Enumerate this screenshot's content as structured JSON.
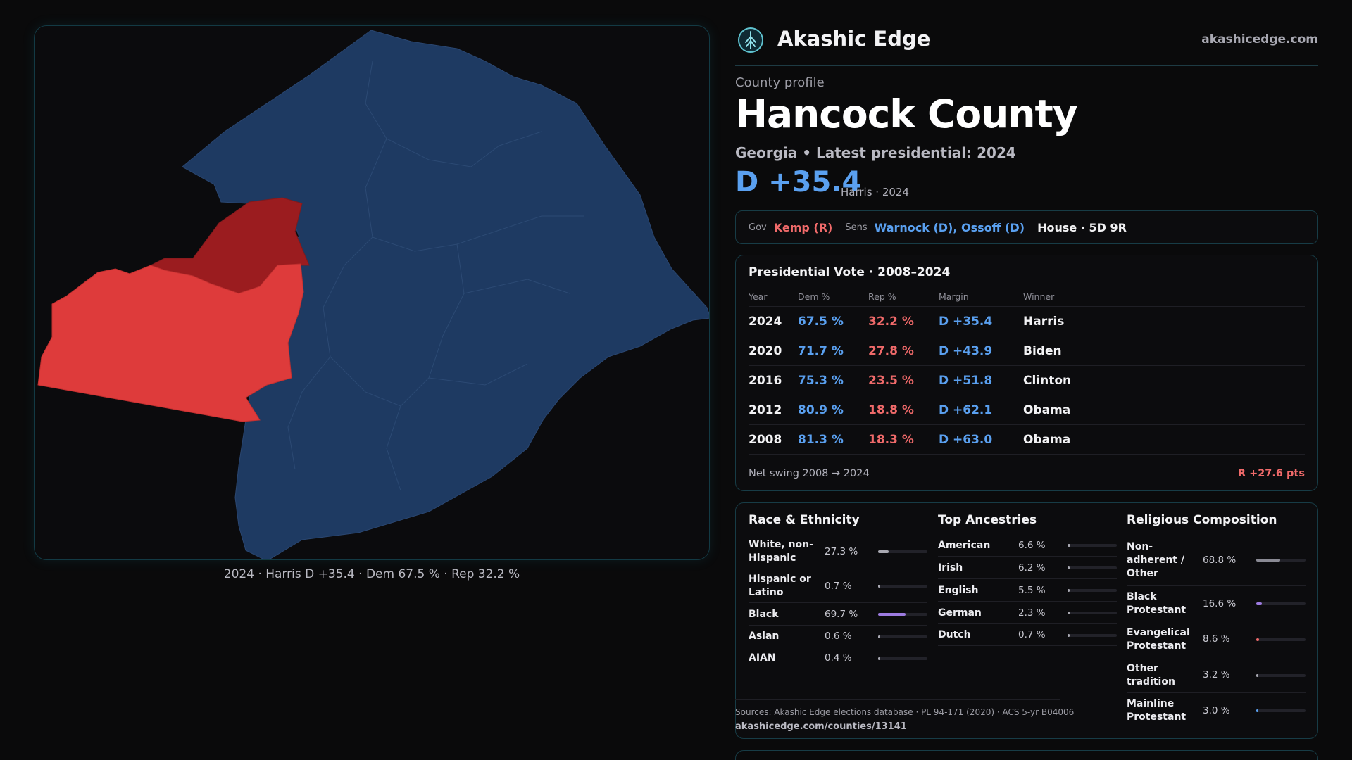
{
  "map": {
    "caption": "2024 · Harris D +35.4 · Dem 67.5 % · Rep 32.2 %",
    "colors": {
      "dem_strong": "#1e3a62",
      "rep_strong": "#9b1c1f",
      "rep_light": "#de3b3b"
    }
  },
  "brand": {
    "name": "Akashic Edge",
    "url": "akashicedge.com",
    "logo_icon": "tree-circle-icon"
  },
  "county": {
    "kicker": "County profile",
    "name": "Hancock County",
    "subtitle": "Georgia • Latest presidential: 2024",
    "margin": "D +35.4",
    "margin_sub": "Harris · 2024"
  },
  "officials": {
    "gov_label": "Gov",
    "gov": "Kemp (R)",
    "sens_label": "Sens",
    "sens": "Warnock (D), Ossoff (D)",
    "house": "House · 5D 9R"
  },
  "presidential": {
    "title": "Presidential Vote · 2008–2024",
    "headers": [
      "Year",
      "Dem %",
      "Rep %",
      "Margin",
      "Winner"
    ],
    "rows": [
      {
        "year": "2024",
        "dem": "67.5 %",
        "rep": "32.2 %",
        "margin": "D +35.4",
        "winner": "Harris"
      },
      {
        "year": "2020",
        "dem": "71.7 %",
        "rep": "27.8 %",
        "margin": "D +43.9",
        "winner": "Biden"
      },
      {
        "year": "2016",
        "dem": "75.3 %",
        "rep": "23.5 %",
        "margin": "D +51.8",
        "winner": "Clinton"
      },
      {
        "year": "2012",
        "dem": "80.9 %",
        "rep": "18.8 %",
        "margin": "D +62.1",
        "winner": "Obama"
      },
      {
        "year": "2008",
        "dem": "81.3 %",
        "rep": "18.3 %",
        "margin": "D +63.0",
        "winner": "Obama"
      }
    ],
    "swing_label": "Net swing 2008 → 2024",
    "swing_value": "R +27.6 pts"
  },
  "race": {
    "title": "Race & Ethnicity",
    "rows": [
      {
        "label": "White, non-Hispanic",
        "value": "27.3 %",
        "fraction": 0.273,
        "color": "#a9a9b2"
      },
      {
        "label": "Hispanic or Latino",
        "value": "0.7 %",
        "fraction": 0.007,
        "color": "#a9a9b2"
      },
      {
        "label": "Black",
        "value": "69.7 %",
        "fraction": 0.697,
        "color": "#9d7be0"
      },
      {
        "label": "Asian",
        "value": "0.6 %",
        "fraction": 0.006,
        "color": "#a9a9b2"
      },
      {
        "label": "AIAN",
        "value": "0.4 %",
        "fraction": 0.004,
        "color": "#a9a9b2"
      }
    ]
  },
  "ancestry": {
    "title": "Top Ancestries",
    "rows": [
      {
        "label": "American",
        "value": "6.6 %",
        "fraction": 0.066,
        "color": "#a9a9b2"
      },
      {
        "label": "Irish",
        "value": "6.2 %",
        "fraction": 0.062,
        "color": "#a9a9b2"
      },
      {
        "label": "English",
        "value": "5.5 %",
        "fraction": 0.055,
        "color": "#a9a9b2"
      },
      {
        "label": "German",
        "value": "2.3 %",
        "fraction": 0.023,
        "color": "#a9a9b2"
      },
      {
        "label": "Dutch",
        "value": "0.7 %",
        "fraction": 0.007,
        "color": "#a9a9b2"
      }
    ]
  },
  "religion": {
    "title": "Religious Composition",
    "rows": [
      {
        "label": "Non-adherent / Other",
        "value": "68.8 %",
        "fraction": 0.688,
        "color": "#8a8a94"
      },
      {
        "label": "Black Protestant",
        "value": "16.6 %",
        "fraction": 0.166,
        "color": "#9d7be0"
      },
      {
        "label": "Evangelical Protestant",
        "value": "8.6 %",
        "fraction": 0.086,
        "color": "#f06a6a"
      },
      {
        "label": "Other tradition",
        "value": "3.2 %",
        "fraction": 0.032,
        "color": "#a9a9b2"
      },
      {
        "label": "Mainline Protestant",
        "value": "3.0 %",
        "fraction": 0.03,
        "color": "#5aa0f0"
      }
    ]
  },
  "sources": {
    "text": "Sources: Akashic Edge elections database · PL 94-171 (2020) · ACS 5-yr B04006",
    "link": "akashicedge.com/counties/13141"
  }
}
